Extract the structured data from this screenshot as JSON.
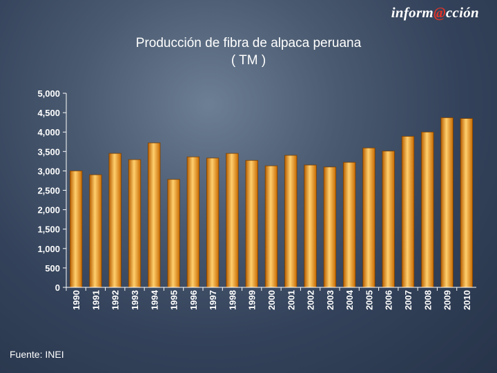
{
  "logo": {
    "prefix": "inform",
    "at": "@",
    "suffix": "cción"
  },
  "title_line1": "Producción de fibra de alpaca peruana",
  "title_line2": "( TM )",
  "source": "Fuente: INEI",
  "colors": {
    "bar_fill": "#e88a10",
    "bar_highlight": "#ffd47a",
    "bar_edge": "#7a3f00",
    "axis": "#ffffff",
    "text": "#ffffff"
  },
  "chart_data": {
    "type": "bar",
    "title": "Producción de fibra de alpaca peruana ( TM )",
    "xlabel": "",
    "ylabel": "",
    "ylim": [
      0,
      5000
    ],
    "yticks": [
      "0",
      "500",
      "1,000",
      "1,500",
      "2,000",
      "2,500",
      "3,000",
      "3,500",
      "4,000",
      "4,500",
      "5,000"
    ],
    "categories": [
      "1990",
      "1991",
      "1992",
      "1993",
      "1994",
      "1995",
      "1996",
      "1997",
      "1998",
      "1999",
      "2000",
      "2001",
      "2002",
      "2003",
      "2004",
      "2005",
      "2006",
      "2007",
      "2008",
      "2009",
      "2010"
    ],
    "values": [
      3000,
      2900,
      3450,
      3290,
      3720,
      2780,
      3360,
      3330,
      3450,
      3270,
      3130,
      3400,
      3150,
      3100,
      3220,
      3590,
      3510,
      3890,
      4000,
      4370,
      4350
    ],
    "grid": false,
    "legend": "none"
  }
}
